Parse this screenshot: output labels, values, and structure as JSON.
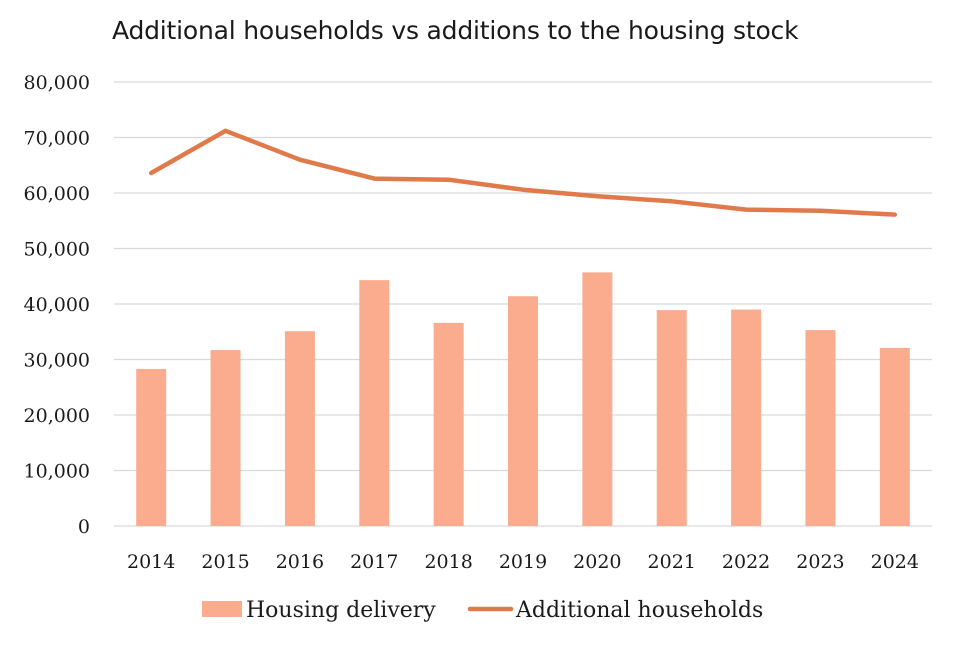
{
  "chart_data": {
    "type": "bar",
    "title": "Additional households vs additions to the housing stock",
    "categories": [
      "2014",
      "2015",
      "2016",
      "2017",
      "2018",
      "2019",
      "2020",
      "2021",
      "2022",
      "2023",
      "2024"
    ],
    "series": [
      {
        "name": "Housing delivery",
        "type": "bar",
        "color": "#FBAC8F",
        "values": [
          28300,
          31700,
          35100,
          44300,
          36600,
          41400,
          45700,
          38900,
          39000,
          35300,
          32100
        ]
      },
      {
        "name": "Additional households",
        "type": "line",
        "color": "#E07A4A",
        "values": [
          63600,
          71200,
          66000,
          62600,
          62400,
          60600,
          59400,
          58500,
          57000,
          56800,
          56100
        ]
      }
    ],
    "yticks": [
      "0",
      "10,000",
      "20,000",
      "30,000",
      "40,000",
      "50,000",
      "60,000",
      "70,000",
      "80,000"
    ],
    "ylim": [
      0,
      80000
    ],
    "xlabel": "",
    "ylabel": "",
    "grid": true,
    "legend_position": "bottom"
  }
}
